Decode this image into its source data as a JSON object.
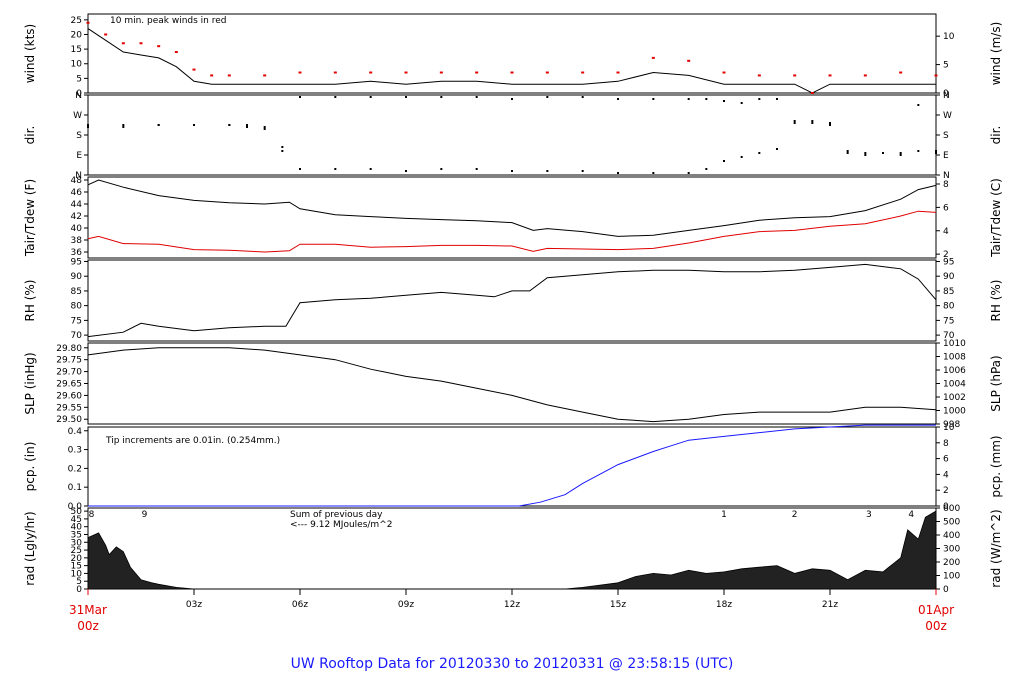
{
  "footer_title": "UW Rooftop Data for 20120330  to  20120331 @ 23:58:15  (UTC)",
  "time_axis": {
    "ticks": [
      "03z",
      "06z",
      "09z",
      "12z",
      "15z",
      "18z",
      "21z"
    ],
    "start_date": "31Mar",
    "start_hour": "00z",
    "end_date": "01Apr",
    "end_hour": "00z"
  },
  "colors": {
    "red": "#e00000",
    "blue": "#1a1aff",
    "purple": "#9900cc",
    "black": "#000000"
  },
  "chart_data": [
    {
      "type": "line",
      "id": "wind",
      "ylabel_left": "wind (kts)",
      "ylabel_right": "wind (m/s)",
      "ylim": [
        0,
        27
      ],
      "yticks_left": [
        "0",
        "5",
        "10",
        "15",
        "20",
        "25"
      ],
      "yticks_right": [
        "0",
        "5",
        "10"
      ],
      "annotation": "10 min. peak winds in red",
      "x_hours": [
        0,
        0.5,
        1,
        1.5,
        2,
        2.5,
        3,
        3.5,
        4,
        5,
        6,
        7,
        8,
        9,
        10,
        11,
        12,
        13,
        14,
        15,
        16,
        17,
        18,
        19,
        20,
        20.5,
        21,
        22,
        23,
        24
      ],
      "series": [
        {
          "values": [
            22,
            18,
            14,
            13,
            12,
            9,
            4,
            3,
            3,
            3,
            3,
            3,
            4,
            3,
            4,
            4,
            3,
            3,
            3,
            4,
            7,
            6,
            3,
            3,
            3,
            0,
            3,
            3,
            3,
            3
          ]
        }
      ],
      "peaks": [
        24,
        20,
        17,
        17,
        16,
        14,
        8,
        6,
        6,
        6,
        7,
        7,
        7,
        7,
        7,
        7,
        7,
        7,
        7,
        7,
        12,
        11,
        7,
        6,
        6,
        0,
        6,
        6,
        7,
        6
      ]
    },
    {
      "type": "scatter",
      "id": "dir",
      "ylabel_left": "dir.",
      "ylabel_right": "dir.",
      "ylim": [
        0,
        4
      ],
      "yticks_left": [
        "N",
        "E",
        "S",
        "W",
        "N"
      ],
      "yticks_right": [
        "N",
        "E",
        "S",
        "W",
        "N"
      ],
      "x_hours": [
        0,
        1,
        2,
        3,
        4,
        4.5,
        5,
        5.5,
        6,
        7,
        8,
        9,
        10,
        11,
        12,
        13,
        14,
        15,
        16,
        17,
        17.5,
        18,
        18.5,
        19,
        19.5,
        20,
        20.5,
        21,
        21.5,
        22,
        22.5,
        23,
        23.5,
        24
      ],
      "values_low": [
        2.4,
        2.4,
        2.5,
        2.5,
        2.5,
        2.4,
        2.3,
        1.2,
        0.3,
        0.3,
        0.3,
        0.2,
        0.3,
        0.3,
        0.2,
        0.2,
        0.2,
        0.1,
        0.1,
        0.1,
        0.3,
        0.7,
        0.9,
        1.1,
        1.3,
        2.6,
        2.6,
        2.5,
        1.1,
        1.0,
        1.1,
        1.0,
        1.2,
        1.1
      ],
      "values_high": [
        2.5,
        2.5,
        2.5,
        2.5,
        2.5,
        2.5,
        2.4,
        1.4,
        3.9,
        3.9,
        3.9,
        3.9,
        3.9,
        3.9,
        3.8,
        3.9,
        3.9,
        3.8,
        3.8,
        3.8,
        3.8,
        3.7,
        3.6,
        3.8,
        3.8,
        2.7,
        2.7,
        2.6,
        1.2,
        1.1,
        1.1,
        1.1,
        3.5,
        1.2
      ]
    },
    {
      "type": "line",
      "id": "temp",
      "ylabel_left": "Tair/Tdew (F)",
      "ylabel_right": "Tair/Tdew (C)",
      "ylim": [
        35,
        48.5
      ],
      "yticks_left": [
        "36",
        "38",
        "40",
        "42",
        "44",
        "46",
        "48"
      ],
      "yticks_right": [
        "2",
        "4",
        "6",
        "8"
      ],
      "x_hours": [
        0,
        0.3,
        1,
        2,
        3,
        4,
        5,
        5.7,
        6,
        7,
        8,
        9,
        10,
        11,
        12,
        12.6,
        13,
        14,
        15,
        16,
        17,
        18,
        19,
        20,
        21,
        22,
        23,
        23.5,
        24
      ],
      "series": [
        {
          "color": "#000000",
          "values": [
            47.2,
            48,
            46.8,
            45.4,
            44.6,
            44.2,
            44,
            44.3,
            43.2,
            42.2,
            41.9,
            41.6,
            41.4,
            41.2,
            40.9,
            39.6,
            39.9,
            39.4,
            38.6,
            38.8,
            39.6,
            40.4,
            41.3,
            41.7,
            41.9,
            42.9,
            44.8,
            46.4,
            47.1
          ]
        },
        {
          "color": "#e00000",
          "values": [
            38.2,
            38.6,
            37.4,
            37.3,
            36.4,
            36.3,
            36,
            36.2,
            37.3,
            37.3,
            36.8,
            36.9,
            37.1,
            37.1,
            37,
            36.1,
            36.6,
            36.5,
            36.4,
            36.6,
            37.5,
            38.6,
            39.4,
            39.6,
            40.3,
            40.7,
            42,
            42.8,
            42.6
          ]
        }
      ]
    },
    {
      "type": "line",
      "id": "rh",
      "ylabel_left": "RH (%)",
      "ylabel_right": "RH (%)",
      "ylim": [
        68,
        95.5
      ],
      "yticks_left": [
        "70",
        "75",
        "80",
        "85",
        "90",
        "95"
      ],
      "yticks_right": [
        "70",
        "75",
        "80",
        "85",
        "90",
        "95"
      ],
      "x_hours": [
        0,
        1,
        1.5,
        2,
        3,
        4,
        5,
        5.6,
        5.8,
        6,
        7,
        8,
        9,
        10,
        11,
        11.5,
        12,
        12.5,
        13,
        14,
        15,
        16,
        17,
        18,
        19,
        20,
        21,
        22,
        23,
        23.5,
        24
      ],
      "series": [
        {
          "values": [
            69.5,
            71,
            74,
            73,
            71.5,
            72.5,
            73,
            73,
            77,
            81,
            82,
            82.5,
            83.5,
            84.5,
            83.5,
            83,
            85,
            85,
            89.5,
            90.5,
            91.5,
            92,
            92,
            91.5,
            91.5,
            92,
            93,
            94,
            92.5,
            89,
            82
          ]
        }
      ]
    },
    {
      "type": "line",
      "id": "slp",
      "ylabel_left": "SLP (inHg)",
      "ylabel_right": "SLP (hPa)",
      "ylim": [
        29.48,
        29.82
      ],
      "yticks_left": [
        "29.50",
        "29.55",
        "29.60",
        "29.65",
        "29.70",
        "29.75",
        "29.80"
      ],
      "yticks_right": [
        "998",
        "1000",
        "1002",
        "1004",
        "1006",
        "1008",
        "1010"
      ],
      "x_hours": [
        0,
        1,
        2,
        3,
        4,
        5,
        6,
        7,
        8,
        9,
        10,
        11,
        12,
        13,
        14,
        15,
        16,
        17,
        18,
        19,
        20,
        21,
        22,
        23,
        24
      ],
      "series": [
        {
          "values": [
            29.77,
            29.79,
            29.8,
            29.8,
            29.8,
            29.79,
            29.77,
            29.75,
            29.71,
            29.68,
            29.66,
            29.63,
            29.6,
            29.56,
            29.53,
            29.5,
            29.49,
            29.5,
            29.52,
            29.53,
            29.53,
            29.53,
            29.55,
            29.55,
            29.54
          ]
        }
      ]
    },
    {
      "type": "line",
      "id": "pcp",
      "ylabel_left": "pcp. (in)",
      "ylabel_right": "pcp. (mm)",
      "ylim": [
        0,
        0.42
      ],
      "yticks_left": [
        "0.0",
        "0.1",
        "0.2",
        "0.3",
        "0.4"
      ],
      "yticks_right": [
        "0",
        "2",
        "4",
        "6",
        "8",
        "10"
      ],
      "annotation": "Tip increments are 0.01in. (0.254mm.)",
      "x_hours": [
        0,
        12.2,
        12.8,
        13.5,
        14,
        15,
        16,
        16.5,
        17,
        18,
        19,
        20,
        21,
        22,
        23,
        24
      ],
      "series": [
        {
          "color": "#1a1aff",
          "values": [
            0,
            0,
            0.02,
            0.06,
            0.12,
            0.22,
            0.29,
            0.32,
            0.35,
            0.37,
            0.39,
            0.41,
            0.42,
            0.43,
            0.43,
            0.43
          ]
        }
      ]
    },
    {
      "type": "area",
      "id": "rad",
      "ylabel_left": "rad (Lgly/hr)",
      "ylabel_right": "rad (W/m^2)",
      "ylim": [
        0,
        52
      ],
      "yticks_left": [
        "0",
        "5",
        "10",
        "15",
        "20",
        "25",
        "30",
        "35",
        "40",
        "45",
        "50"
      ],
      "yticks_right": [
        "0",
        "100",
        "200",
        "300",
        "400",
        "500",
        "600"
      ],
      "annotation_lines": [
        "Sum of previous day",
        "<--- 9.12 MJoules/m^2"
      ],
      "day_markers": [
        {
          "h": 0.1,
          "label": "8"
        },
        {
          "h": 1.6,
          "label": "9"
        },
        {
          "h": 18,
          "label": "1"
        },
        {
          "h": 20,
          "label": "2"
        },
        {
          "h": 22.1,
          "label": "3"
        },
        {
          "h": 23.3,
          "label": "4"
        }
      ],
      "x_hours": [
        0,
        0.3,
        0.5,
        0.6,
        0.8,
        1,
        1.2,
        1.5,
        1.8,
        2,
        2.5,
        3,
        13.5,
        14,
        15,
        15.5,
        16,
        16.5,
        17,
        17.5,
        18,
        18.5,
        19,
        19.5,
        20,
        20.5,
        21,
        21.5,
        22,
        22.5,
        23,
        23.2,
        23.5,
        23.7,
        24
      ],
      "series": [
        {
          "values": [
            33,
            36,
            28,
            22,
            27,
            24,
            14,
            6,
            4,
            3,
            1,
            0,
            0,
            1,
            4,
            8,
            10,
            9,
            12,
            10,
            11,
            13,
            14,
            15,
            10,
            13,
            12,
            6,
            12,
            11,
            20,
            38,
            32,
            46,
            50
          ]
        }
      ]
    }
  ]
}
